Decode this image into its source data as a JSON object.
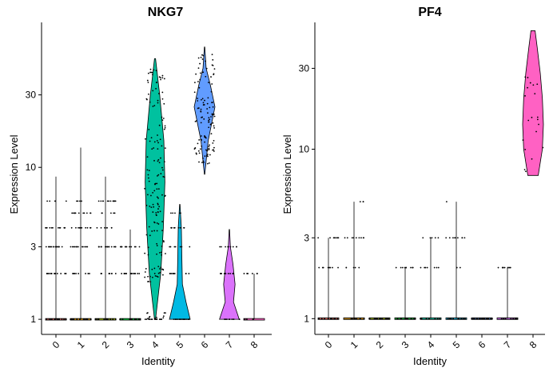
{
  "chart_data": [
    {
      "type": "violin",
      "title": "NKG7",
      "xlabel": "Identity",
      "ylabel": "Expression Level",
      "y_scale": "log",
      "ylim": [
        0.92,
        90
      ],
      "y_ticks": [
        1,
        3,
        10,
        30
      ],
      "y_tick_labels": [
        "1",
        "3",
        "10",
        "30"
      ],
      "categories": [
        "0",
        "1",
        "2",
        "3",
        "4",
        "5",
        "6",
        "7",
        "8"
      ],
      "groups": [
        {
          "identity": "0",
          "color": "#F8766D",
          "max": 8.7,
          "levels": [
            1,
            2,
            3,
            4,
            6
          ],
          "n_points": 60
        },
        {
          "identity": "1",
          "color": "#D39200",
          "max": 13.5,
          "levels": [
            1,
            2,
            3,
            4,
            5,
            6
          ],
          "n_points": 60
        },
        {
          "identity": "2",
          "color": "#93AA00",
          "max": 8.7,
          "levels": [
            1,
            2,
            3,
            4,
            5,
            6
          ],
          "n_points": 60
        },
        {
          "identity": "3",
          "color": "#00BA38",
          "max": 3.9,
          "levels": [
            1,
            2,
            3
          ],
          "n_points": 40
        },
        {
          "identity": "4",
          "color": "#00C19F",
          "max": 52,
          "violin": [
            [
              1,
              0.05
            ],
            [
              2,
              0.55
            ],
            [
              4,
              0.8
            ],
            [
              8,
              0.95
            ],
            [
              15,
              0.85
            ],
            [
              30,
              0.45
            ],
            [
              52,
              0.05
            ]
          ],
          "levels": [
            1,
            2,
            3,
            4,
            5,
            6,
            7,
            8,
            10,
            12,
            15,
            20,
            25,
            30,
            40
          ],
          "n_points": 180
        },
        {
          "identity": "5",
          "color": "#00B9E3",
          "max": 5.7,
          "violin": [
            [
              1,
              1.0
            ],
            [
              1.3,
              0.6
            ],
            [
              1.7,
              0.25
            ],
            [
              2.5,
              0.2
            ],
            [
              4,
              0.15
            ],
            [
              5.7,
              0.02
            ]
          ],
          "levels": [
            1,
            2,
            3,
            4,
            5
          ],
          "n_points": 50
        },
        {
          "identity": "6",
          "color": "#619CFF",
          "min": 9,
          "max": 62,
          "violin": [
            [
              9,
              0.02
            ],
            [
              15,
              0.35
            ],
            [
              25,
              1.0
            ],
            [
              35,
              0.55
            ],
            [
              45,
              0.15
            ],
            [
              62,
              0.02
            ]
          ],
          "levels": [
            12,
            15,
            20,
            25,
            30,
            40,
            50
          ],
          "n_points": 120
        },
        {
          "identity": "7",
          "color": "#DB72FB",
          "max": 3.9,
          "violin": [
            [
              1,
              0.95
            ],
            [
              1.3,
              0.4
            ],
            [
              1.7,
              0.55
            ],
            [
              2.3,
              0.35
            ],
            [
              3,
              0.1
            ],
            [
              3.9,
              0.02
            ]
          ],
          "levels": [
            1,
            2,
            3
          ],
          "n_points": 30
        },
        {
          "identity": "8",
          "color": "#FF61C3",
          "max": 2.0,
          "levels": [
            1,
            2
          ],
          "n_points": 10
        }
      ]
    },
    {
      "type": "violin",
      "title": "PF4",
      "xlabel": "Identity",
      "ylabel": "Expression Level",
      "y_scale": "log",
      "ylim": [
        0.92,
        56
      ],
      "y_ticks": [
        1,
        3,
        10,
        30
      ],
      "y_tick_labels": [
        "1",
        "3",
        "10",
        "30"
      ],
      "categories": [
        "0",
        "1",
        "2",
        "3",
        "4",
        "5",
        "6",
        "7",
        "8"
      ],
      "groups": [
        {
          "identity": "0",
          "color": "#F8766D",
          "max": 3.0,
          "levels": [
            1,
            2,
            3
          ],
          "n_points": 25
        },
        {
          "identity": "1",
          "color": "#D39200",
          "max": 4.9,
          "levels": [
            1,
            2,
            3,
            5
          ],
          "n_points": 25
        },
        {
          "identity": "2",
          "color": "#93AA00",
          "max": 1.0,
          "levels": [
            1
          ],
          "n_points": 20
        },
        {
          "identity": "3",
          "color": "#00BA38",
          "max": 2.0,
          "levels": [
            1,
            2
          ],
          "n_points": 20
        },
        {
          "identity": "4",
          "color": "#00C19F",
          "max": 3.0,
          "levels": [
            1,
            2,
            3
          ],
          "n_points": 20
        },
        {
          "identity": "5",
          "color": "#00B9E3",
          "max": 4.9,
          "levels": [
            1,
            2,
            3,
            5
          ],
          "n_points": 25
        },
        {
          "identity": "6",
          "color": "#619CFF",
          "max": 1.0,
          "levels": [
            1
          ],
          "n_points": 20
        },
        {
          "identity": "7",
          "color": "#DB72FB",
          "max": 2.0,
          "levels": [
            1,
            2
          ],
          "n_points": 20
        },
        {
          "identity": "8",
          "color": "#FF61C3",
          "min": 7,
          "max": 50,
          "violin": [
            [
              7,
              0.5
            ],
            [
              10,
              0.9
            ],
            [
              14,
              1.0
            ],
            [
              20,
              0.9
            ],
            [
              28,
              0.7
            ],
            [
              40,
              0.4
            ],
            [
              50,
              0.2
            ]
          ],
          "levels": [
            8,
            10,
            12,
            15,
            20,
            25,
            30
          ],
          "n_points": 20
        }
      ]
    }
  ]
}
